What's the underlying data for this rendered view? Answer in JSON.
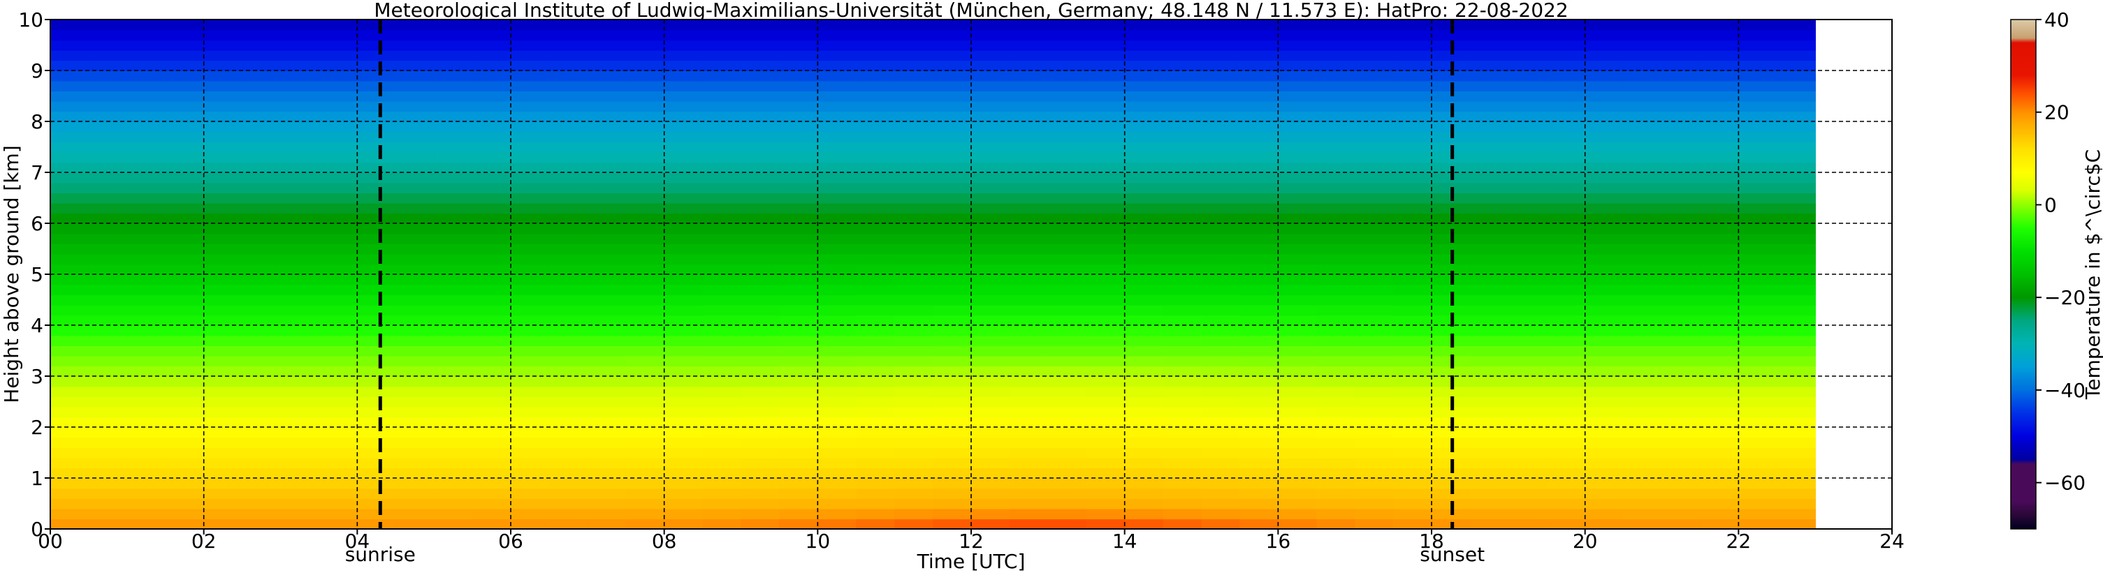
{
  "chart_data": {
    "type": "heatmap",
    "title": "Meteorological Institute of Ludwig-Maximilians-Universität (München, Germany; 48.148 N / 11.573 E):    HatPro: 22-08-2022",
    "xlabel": "Time [UTC]",
    "ylabel": "Height above ground [km]",
    "xlim": [
      0,
      24
    ],
    "ylim": [
      0,
      10
    ],
    "x_ticks": [
      "00",
      "02",
      "04",
      "06",
      "08",
      "10",
      "12",
      "14",
      "16",
      "18",
      "20",
      "22",
      "24"
    ],
    "y_ticks": [
      "0",
      "1",
      "2",
      "3",
      "4",
      "5",
      "6",
      "7",
      "8",
      "9",
      "10"
    ],
    "grid": true,
    "data_x_range": [
      0,
      23
    ],
    "events": [
      {
        "label": "sunrise",
        "x": 4.3
      },
      {
        "label": "sunset",
        "x": 18.27
      }
    ],
    "temperature_profile": {
      "height_km": [
        0,
        0.25,
        0.5,
        1,
        1.5,
        2,
        2.5,
        3,
        3.5,
        4,
        4.5,
        5,
        5.5,
        6,
        6.5,
        7,
        7.5,
        8,
        8.5,
        9,
        9.5,
        10
      ],
      "temp_c_night": [
        20,
        18,
        16,
        13,
        10,
        7,
        4,
        1,
        -2,
        -6,
        -9,
        -13,
        -16,
        -19,
        -23,
        -27,
        -31,
        -35,
        -39,
        -44,
        -49,
        -53
      ],
      "temp_c_day": [
        26,
        21,
        17,
        14,
        11,
        8,
        5,
        2,
        -2,
        -5,
        -9,
        -12,
        -16,
        -19,
        -23,
        -27,
        -31,
        -35,
        -39,
        -44,
        -49,
        -53
      ]
    },
    "colorbar": {
      "label": "Temperature in $^\\circ$C",
      "min": -70,
      "max": 40,
      "ticks": [
        "40",
        "20",
        "0",
        "−20",
        "−40",
        "−60"
      ],
      "tick_values": [
        40,
        20,
        0,
        -20,
        -40,
        -60
      ],
      "colors": [
        {
          "t": -70,
          "c": "#000020"
        },
        {
          "t": -67,
          "c": "#2a0838"
        },
        {
          "t": -64,
          "c": "#4a0a5a"
        },
        {
          "t": -56,
          "c": "#4a0a5a"
        },
        {
          "t": -55,
          "c": "#0000a0"
        },
        {
          "t": -50,
          "c": "#0000e0"
        },
        {
          "t": -45,
          "c": "#0030e8"
        },
        {
          "t": -40,
          "c": "#0070e0"
        },
        {
          "t": -35,
          "c": "#00a0d8"
        },
        {
          "t": -30,
          "c": "#00b4b4"
        },
        {
          "t": -25,
          "c": "#00a880"
        },
        {
          "t": -20,
          "c": "#009800"
        },
        {
          "t": -15,
          "c": "#00c000"
        },
        {
          "t": -10,
          "c": "#00e000"
        },
        {
          "t": -5,
          "c": "#20ff00"
        },
        {
          "t": 0,
          "c": "#90ff00"
        },
        {
          "t": 3,
          "c": "#d8ff00"
        },
        {
          "t": 7,
          "c": "#ffff00"
        },
        {
          "t": 12,
          "c": "#ffe000"
        },
        {
          "t": 17,
          "c": "#ffb000"
        },
        {
          "t": 20,
          "c": "#ff9000"
        },
        {
          "t": 24,
          "c": "#ff5000"
        },
        {
          "t": 28,
          "c": "#e81400"
        },
        {
          "t": 35,
          "c": "#e01000"
        },
        {
          "t": 36,
          "c": "#c8a070"
        },
        {
          "t": 40,
          "c": "#dccba8"
        }
      ]
    }
  }
}
